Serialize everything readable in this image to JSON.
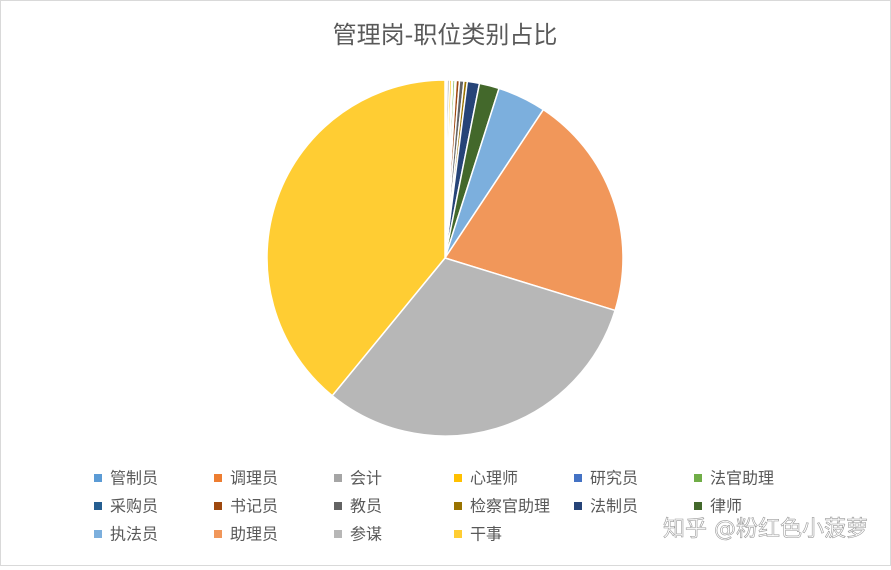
{
  "chart_data": {
    "type": "pie",
    "title": "管理岗-职位类别占比",
    "series": [
      {
        "name": "管制员",
        "color": "#5b9bd5",
        "values": [
          0.1
        ]
      },
      {
        "name": "调理员",
        "color": "#ed7d31",
        "values": [
          0.1
        ]
      },
      {
        "name": "会计",
        "color": "#a5a5a5",
        "values": [
          0.2
        ]
      },
      {
        "name": "心理师",
        "color": "#ffc000",
        "values": [
          0.2
        ]
      },
      {
        "name": "研究员",
        "color": "#4472c4",
        "values": [
          0.1
        ]
      },
      {
        "name": "法官助理",
        "color": "#70ad47",
        "values": [
          0.2
        ]
      },
      {
        "name": "采购员",
        "color": "#255e91",
        "values": [
          0.1
        ]
      },
      {
        "name": "书记员",
        "color": "#9e480e",
        "values": [
          0.3
        ]
      },
      {
        "name": "教员",
        "color": "#636363",
        "values": [
          0.4
        ]
      },
      {
        "name": "检察官助理",
        "color": "#997300",
        "values": [
          0.3
        ]
      },
      {
        "name": "法制员",
        "color": "#264478",
        "values": [
          1.1
        ]
      },
      {
        "name": "律师",
        "color": "#43682b",
        "values": [
          1.8
        ]
      },
      {
        "name": "执法员",
        "color": "#7cafdd",
        "values": [
          4.4
        ]
      },
      {
        "name": "助理员",
        "color": "#f1975a",
        "values": [
          20.4
        ]
      },
      {
        "name": "参谋",
        "color": "#b7b7b7",
        "values": [
          31.1
        ]
      },
      {
        "name": "干事",
        "color": "#ffcd33",
        "values": [
          39
        ]
      }
    ],
    "legend_position": "bottom",
    "watermark": "知乎 @粉红色小菠萝"
  }
}
